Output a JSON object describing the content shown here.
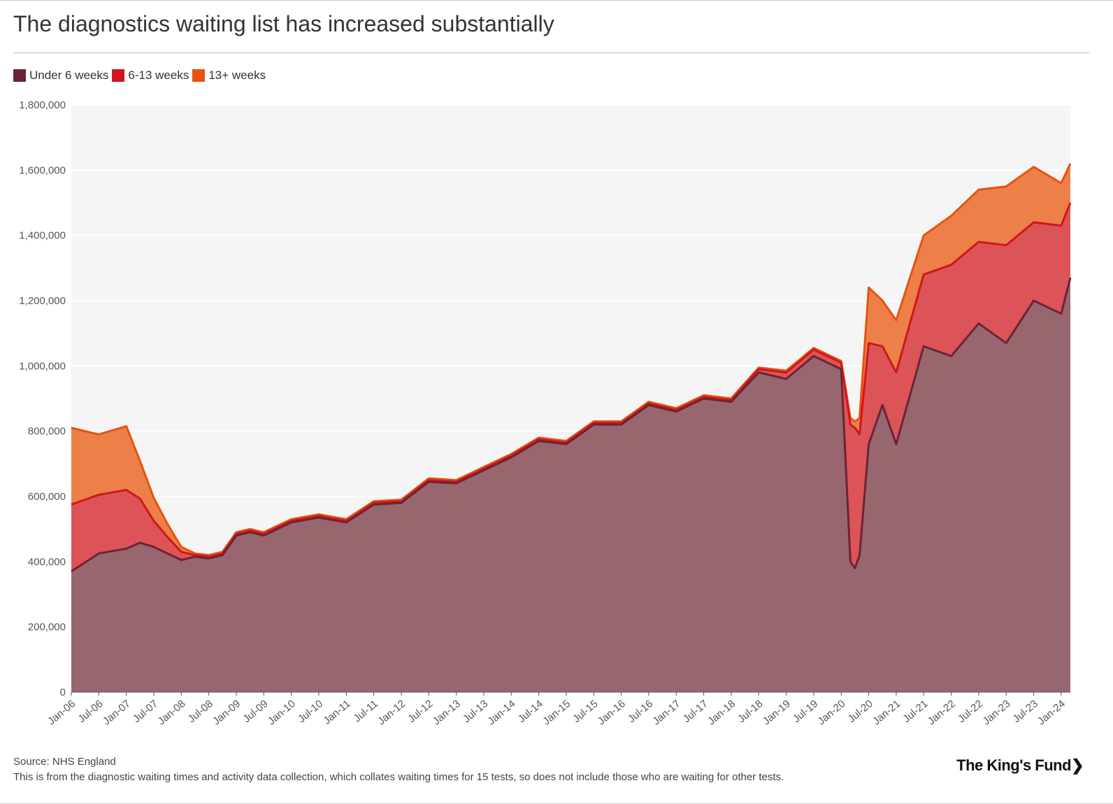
{
  "title": "The diagnostics waiting list has increased substantially",
  "legend": [
    {
      "label": "Under 6 weeks",
      "color": "#6b2436"
    },
    {
      "label": "6-13 weeks",
      "color": "#d0161c"
    },
    {
      "label": "13+ weeks",
      "color": "#e8520e"
    }
  ],
  "footer": {
    "source": "Source: NHS England",
    "note": "This is from the diagnostic waiting times and activity data collection, which collates waiting times for 15 tests, so does not include those who are waiting for other tests."
  },
  "logo": "The King's Fund",
  "logo_chevron": "❯",
  "chart_data": {
    "type": "area",
    "stacked": true,
    "title": "The diagnostics waiting list has increased substantially",
    "ylim": [
      0,
      1800000
    ],
    "yticks": [
      0,
      200000,
      400000,
      600000,
      800000,
      1000000,
      1200000,
      1400000,
      1600000,
      1800000
    ],
    "ytick_labels": [
      "0",
      "200,000",
      "400,000",
      "600,000",
      "800,000",
      "1,000,000",
      "1,200,000",
      "1,400,000",
      "1,600,000",
      "1,800,000"
    ],
    "xtick_labels": [
      "Jan-06",
      "Jul-06",
      "Jan-07",
      "Jul-07",
      "Jan-08",
      "Jul-08",
      "Jan-09",
      "Jul-09",
      "Jan-10",
      "Jul-10",
      "Jan-11",
      "Jul-11",
      "Jan-12",
      "Jul-12",
      "Jan-13",
      "Jul-13",
      "Jan-14",
      "Jul-14",
      "Jan-15",
      "Jul-15",
      "Jan-16",
      "Jul-16",
      "Jan-17",
      "Jul-17",
      "Jan-18",
      "Jul-18",
      "Jan-19",
      "Jul-19",
      "Jan-20",
      "Jul-20",
      "Jan-21",
      "Jul-21",
      "Jan-22",
      "Jul-22",
      "Jan-23",
      "Jul-23",
      "Jan-24"
    ],
    "grid": true,
    "legend_position": "top-left",
    "x": [
      "Jan-06",
      "Jul-06",
      "Jan-07",
      "Apr-07",
      "Jul-07",
      "Oct-07",
      "Jan-08",
      "Apr-08",
      "Jul-08",
      "Oct-08",
      "Jan-09",
      "Apr-09",
      "Jul-09",
      "Jan-10",
      "Jul-10",
      "Jan-11",
      "Jul-11",
      "Jan-12",
      "Jul-12",
      "Jan-13",
      "Jul-13",
      "Jan-14",
      "Jul-14",
      "Jan-15",
      "Jul-15",
      "Jan-16",
      "Jul-16",
      "Jan-17",
      "Jul-17",
      "Jan-18",
      "Jul-18",
      "Jan-19",
      "Jul-19",
      "Jan-20",
      "Mar-20",
      "Apr-20",
      "May-20",
      "Jul-20",
      "Oct-20",
      "Jan-21",
      "Jul-21",
      "Jan-22",
      "Jul-22",
      "Jan-23",
      "Jul-23",
      "Jan-24",
      "Mar-24"
    ],
    "series": [
      {
        "name": "Under 6 weeks",
        "color": "#6b2436",
        "values": [
          370000,
          425000,
          440000,
          458000,
          445000,
          425000,
          405000,
          415000,
          410000,
          420000,
          480000,
          490000,
          480000,
          520000,
          535000,
          520000,
          575000,
          580000,
          645000,
          640000,
          680000,
          720000,
          770000,
          760000,
          820000,
          820000,
          880000,
          860000,
          900000,
          890000,
          980000,
          960000,
          1030000,
          990000,
          400000,
          380000,
          420000,
          760000,
          880000,
          760000,
          1060000,
          1030000,
          1130000,
          1070000,
          1200000,
          1160000,
          1270000
        ]
      },
      {
        "name": "6-13 weeks",
        "color": "#d0161c",
        "values": [
          205000,
          180000,
          180000,
          135000,
          80000,
          50000,
          25000,
          5000,
          5000,
          5000,
          5000,
          5000,
          5000,
          5000,
          5000,
          5000,
          5000,
          5000,
          5000,
          5000,
          5000,
          5000,
          5000,
          5000,
          5000,
          5000,
          5000,
          5000,
          5000,
          5000,
          10000,
          20000,
          20000,
          20000,
          420000,
          430000,
          370000,
          310000,
          180000,
          220000,
          220000,
          280000,
          250000,
          300000,
          240000,
          270000,
          230000
        ]
      },
      {
        "name": "13+ weeks",
        "color": "#e8520e",
        "values": [
          235000,
          185000,
          195000,
          115000,
          70000,
          40000,
          15000,
          5000,
          5000,
          5000,
          5000,
          5000,
          5000,
          5000,
          5000,
          5000,
          5000,
          5000,
          5000,
          5000,
          5000,
          5000,
          5000,
          5000,
          5000,
          5000,
          5000,
          5000,
          5000,
          5000,
          5000,
          5000,
          5000,
          5000,
          20000,
          20000,
          50000,
          170000,
          140000,
          160000,
          120000,
          150000,
          160000,
          180000,
          170000,
          130000,
          120000
        ]
      }
    ]
  }
}
